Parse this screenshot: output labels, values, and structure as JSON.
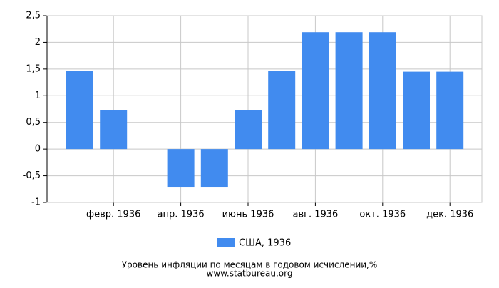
{
  "chart_data": {
    "type": "bar",
    "title": "Уровень инфляции по месяцам в годовом исчислении,%",
    "subtitle": "www.statbureau.org",
    "categories": [
      null,
      "февр. 1936",
      null,
      "апр. 1936",
      null,
      "июнь 1936",
      null,
      "авг. 1936",
      null,
      "окт. 1936",
      null,
      "дек. 1936"
    ],
    "series": [
      {
        "name": "США, 1936",
        "color": "#418bef",
        "values": [
          1.47,
          0.73,
          0,
          -0.72,
          -0.72,
          0.73,
          1.46,
          2.19,
          2.19,
          2.19,
          1.45,
          1.45
        ]
      }
    ],
    "ylim": [
      -1,
      2.5
    ],
    "yticks": [
      -1,
      {
        "value": -0.5,
        "label": "-0,5"
      },
      0,
      {
        "value": 0.5,
        "label": "0,5"
      },
      1,
      {
        "value": 1.5,
        "label": "1,5"
      },
      2,
      {
        "value": 2.5,
        "label": "2,5"
      }
    ],
    "grid": true
  }
}
